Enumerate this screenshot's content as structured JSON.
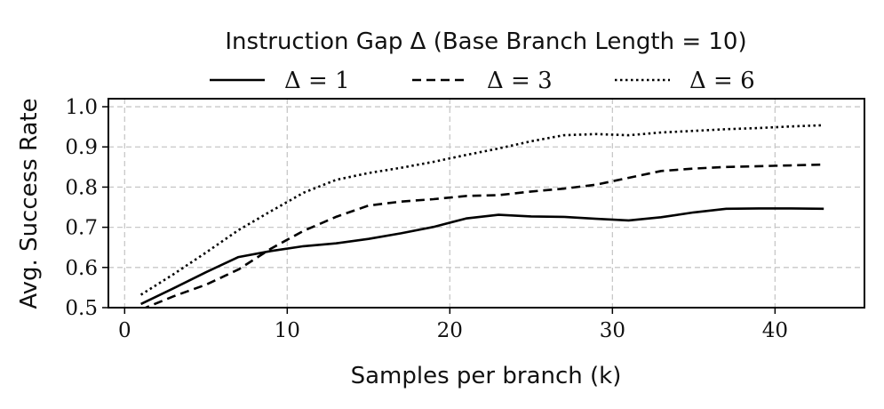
{
  "chart_data": {
    "type": "line",
    "legend_title": "Instruction Gap Δ (Base Branch Length = 10)",
    "legend_placement": "top-center",
    "xlabel": "Samples per branch (k)",
    "ylabel": "Avg. Success Rate",
    "xlim": [
      -1,
      45.5
    ],
    "ylim": [
      0.5,
      1.02
    ],
    "xticks": [
      0,
      10,
      20,
      30,
      40
    ],
    "yticks": [
      0.5,
      0.6,
      0.7,
      0.8,
      0.9,
      1.0
    ],
    "xtick_labels": [
      "0",
      "10",
      "20",
      "30",
      "40"
    ],
    "ytick_labels": [
      "0.5",
      "0.6",
      "0.7",
      "0.8",
      "0.9",
      "1.0"
    ],
    "grid": true,
    "series": [
      {
        "name": "Δ = 1",
        "style": "solid",
        "x": [
          1,
          3,
          5,
          7,
          9,
          11,
          13,
          15,
          17,
          19,
          21,
          23,
          25,
          27,
          29,
          31,
          33,
          35,
          37,
          39,
          41,
          43
        ],
        "y": [
          0.509,
          0.548,
          0.588,
          0.626,
          0.641,
          0.653,
          0.66,
          0.671,
          0.685,
          0.701,
          0.722,
          0.731,
          0.727,
          0.726,
          0.721,
          0.717,
          0.725,
          0.737,
          0.746,
          0.747,
          0.747,
          0.746
        ]
      },
      {
        "name": "Δ = 3",
        "style": "dashed",
        "x": [
          1,
          3,
          5,
          7,
          9,
          11,
          13,
          15,
          17,
          19,
          21,
          23,
          25,
          27,
          29,
          31,
          33,
          35,
          37,
          39,
          41,
          43
        ],
        "y": [
          0.495,
          0.528,
          0.557,
          0.595,
          0.647,
          0.691,
          0.726,
          0.754,
          0.764,
          0.77,
          0.778,
          0.78,
          0.789,
          0.796,
          0.806,
          0.823,
          0.84,
          0.846,
          0.85,
          0.852,
          0.854,
          0.856
        ]
      },
      {
        "name": "Δ = 6",
        "style": "dotted",
        "x": [
          1,
          3,
          5,
          7,
          9,
          11,
          13,
          15,
          17,
          19,
          21,
          23,
          25,
          27,
          29,
          31,
          33,
          35,
          37,
          39,
          41,
          43
        ],
        "y": [
          0.532,
          0.583,
          0.637,
          0.693,
          0.74,
          0.786,
          0.818,
          0.835,
          0.848,
          0.863,
          0.88,
          0.896,
          0.914,
          0.929,
          0.932,
          0.929,
          0.936,
          0.94,
          0.944,
          0.947,
          0.951,
          0.954
        ]
      }
    ]
  }
}
